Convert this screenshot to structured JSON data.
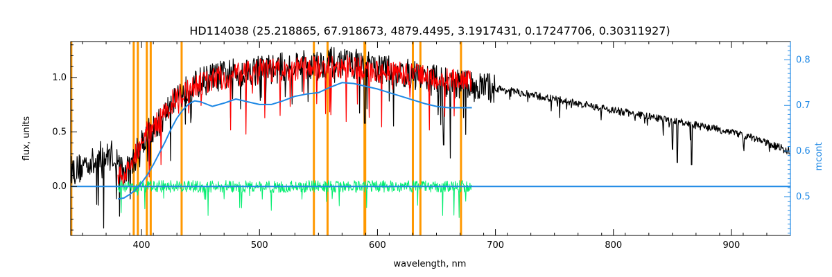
{
  "colors": {
    "observed": "#000000",
    "model": "#ff0000",
    "residual": "#00ee6e",
    "continuum": "#1e88e5",
    "lines": "#ff9800",
    "right_axis": "#1e88e5"
  },
  "chart_data": {
    "type": "line",
    "title": "HD114038    (25.218865, 67.918673, 4879.4495, 3.1917431, 0.17247706, 0.30311927)",
    "xlabel": "wavelength, nm",
    "ylabel": "flux, units",
    "y2label": "mcont",
    "xlim": [
      340,
      950
    ],
    "ylim": [
      -0.45,
      1.33
    ],
    "y2lim": [
      0.415,
      0.84
    ],
    "xticks": [
      400,
      500,
      600,
      700,
      800,
      900
    ],
    "yticks": [
      0.0,
      0.5,
      1.0
    ],
    "y2ticks": [
      0.5,
      0.6,
      0.7,
      0.8
    ],
    "xtick_labels": [
      "400",
      "500",
      "600",
      "700",
      "800",
      "900"
    ],
    "ytick_labels": [
      "0.0",
      "0.5",
      "1.0"
    ],
    "y2tick_labels": [
      "0.5",
      "0.6",
      "0.7",
      "0.8"
    ],
    "grid": false,
    "vertical_lines_nm": [
      340.5,
      393.4,
      396.9,
      404.5,
      407.8,
      434.0,
      546.1,
      557.7,
      589.0,
      589.6,
      630.0,
      636.4,
      670.8
    ],
    "series": [
      {
        "color_key": "observed",
        "x": [
          340,
          345,
          350,
          355,
          360,
          365,
          370,
          375,
          380,
          385,
          390,
          395,
          400,
          405,
          410,
          415,
          420,
          425,
          430,
          435,
          440,
          445,
          450,
          460,
          470,
          480,
          490,
          500,
          510,
          520,
          530,
          540,
          550,
          560,
          570,
          580,
          590,
          600,
          610,
          620,
          630,
          640,
          650,
          660,
          670,
          680,
          700,
          720,
          740,
          760,
          780,
          800,
          820,
          840,
          860,
          880,
          900,
          920,
          940,
          950
        ],
        "y": [
          0.16,
          0.15,
          0.18,
          0.24,
          0.2,
          0.28,
          0.26,
          0.3,
          0.22,
          0.12,
          0.16,
          0.28,
          0.42,
          0.48,
          0.52,
          0.58,
          0.66,
          0.78,
          0.86,
          0.85,
          0.9,
          0.92,
          0.96,
          1.0,
          1.02,
          1.04,
          1.06,
          1.08,
          1.08,
          1.09,
          1.12,
          1.12,
          1.12,
          1.14,
          1.13,
          1.13,
          1.1,
          1.08,
          1.06,
          1.04,
          1.02,
          1.0,
          0.98,
          0.96,
          0.94,
          0.92,
          0.9,
          0.86,
          0.82,
          0.78,
          0.74,
          0.7,
          0.66,
          0.62,
          0.58,
          0.54,
          0.5,
          0.44,
          0.36,
          0.32
        ]
      },
      {
        "color_key": "model",
        "x": [
          380,
          385,
          390,
          395,
          400,
          405,
          410,
          415,
          420,
          425,
          430,
          435,
          440,
          445,
          450,
          460,
          470,
          480,
          490,
          500,
          510,
          520,
          530,
          540,
          550,
          560,
          570,
          580,
          590,
          600,
          610,
          620,
          630,
          640,
          650,
          660,
          670,
          680
        ],
        "y": [
          0.1,
          0.1,
          0.16,
          0.3,
          0.44,
          0.5,
          0.54,
          0.6,
          0.66,
          0.76,
          0.82,
          0.84,
          0.88,
          0.9,
          0.94,
          0.98,
          1.0,
          1.02,
          1.04,
          1.06,
          1.06,
          1.07,
          1.08,
          1.08,
          1.09,
          1.1,
          1.1,
          1.1,
          1.08,
          1.06,
          1.05,
          1.04,
          1.02,
          1.0,
          0.98,
          0.97,
          0.96,
          0.95
        ]
      },
      {
        "color_key": "residual",
        "x": [
          380,
          400,
          420,
          440,
          460,
          480,
          500,
          520,
          540,
          560,
          580,
          600,
          620,
          640,
          660,
          680
        ],
        "y": [
          0.0,
          0.0,
          0.0,
          0.0,
          0.0,
          0.0,
          0.0,
          0.0,
          0.0,
          0.0,
          0.0,
          0.0,
          0.0,
          0.0,
          0.0,
          0.0
        ]
      },
      {
        "color_key": "continuum",
        "axis": "right",
        "x": [
          380,
          385,
          390,
          395,
          400,
          405,
          410,
          415,
          420,
          425,
          430,
          435,
          440,
          445,
          450,
          460,
          470,
          480,
          490,
          500,
          510,
          520,
          530,
          540,
          550,
          560,
          570,
          580,
          590,
          600,
          610,
          620,
          630,
          640,
          650,
          660,
          670,
          680
        ],
        "y": [
          0.495,
          0.497,
          0.505,
          0.515,
          0.53,
          0.548,
          0.57,
          0.595,
          0.62,
          0.648,
          0.672,
          0.69,
          0.703,
          0.71,
          0.708,
          0.698,
          0.705,
          0.714,
          0.708,
          0.702,
          0.702,
          0.71,
          0.72,
          0.725,
          0.728,
          0.74,
          0.75,
          0.748,
          0.742,
          0.736,
          0.728,
          0.72,
          0.712,
          0.704,
          0.698,
          0.695,
          0.695,
          0.695
        ]
      },
      {
        "color_key": "continuum",
        "axis": "left",
        "x": [
          340,
          950
        ],
        "y": [
          0.0,
          0.0
        ]
      }
    ]
  }
}
